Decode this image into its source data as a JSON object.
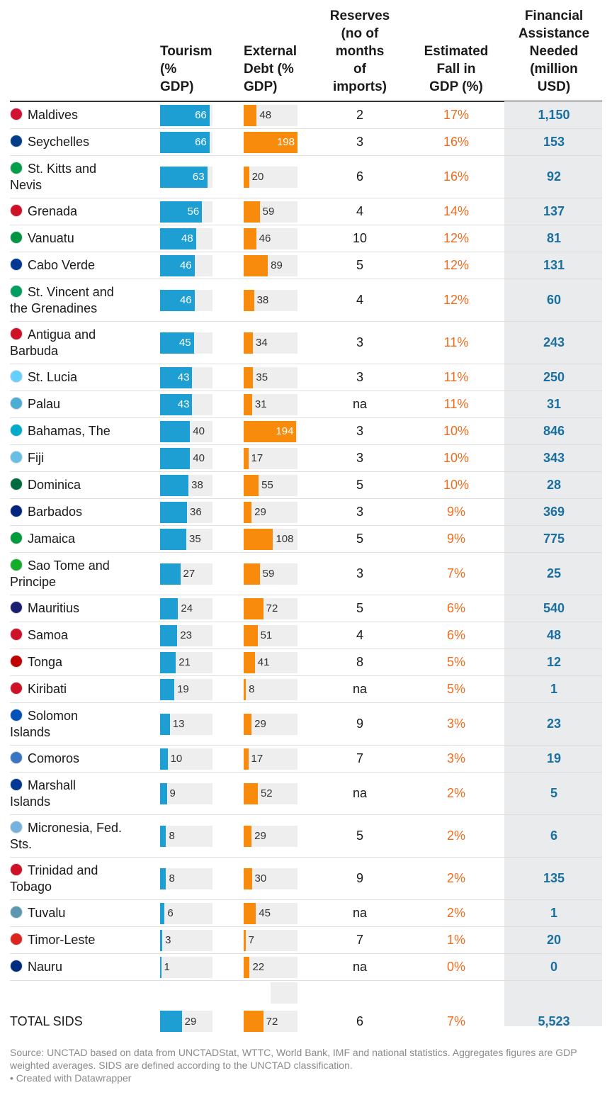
{
  "chart_data": {
    "type": "table",
    "columns": {
      "country": "",
      "tourism": "Tourism (% GDP)",
      "debt": "External Debt (% GDP)",
      "reserves": "Reserves (no of months of imports)",
      "fall": "Estimated Fall in GDP (%)",
      "fin": "Financial Assistance Needed (million USD)"
    },
    "header_lines": {
      "tourism": [
        "Tourism",
        "(%",
        "GDP)"
      ],
      "debt": [
        "External",
        "Debt (%",
        "GDP)"
      ],
      "reserves": [
        "Reserves",
        "(no of",
        "months",
        "of",
        "imports)"
      ],
      "fall": [
        "Estimated",
        "Fall in",
        "GDP (%)"
      ],
      "fin": [
        "Financial",
        "Assistance",
        "Needed",
        "(million",
        "USD)"
      ]
    },
    "bar_scale": {
      "tourism_max": 70,
      "debt_max": 198
    },
    "rows": [
      {
        "country": [
          "Maldives"
        ],
        "tourism": 66,
        "debt": 48,
        "reserves": "2",
        "fall": "17%",
        "fin": "1,150",
        "flag": "#d21034"
      },
      {
        "country": [
          "Seychelles"
        ],
        "tourism": 66,
        "debt": 198,
        "reserves": "3",
        "fall": "16%",
        "fin": "153",
        "flag": "#003f87"
      },
      {
        "country": [
          "St. Kitts and",
          "Nevis"
        ],
        "tourism": 63,
        "debt": 20,
        "reserves": "6",
        "fall": "16%",
        "fin": "92",
        "flag": "#009e49"
      },
      {
        "country": [
          "Grenada"
        ],
        "tourism": 56,
        "debt": 59,
        "reserves": "4",
        "fall": "14%",
        "fin": "137",
        "flag": "#ce1126"
      },
      {
        "country": [
          "Vanuatu"
        ],
        "tourism": 48,
        "debt": 46,
        "reserves": "10",
        "fall": "12%",
        "fin": "81",
        "flag": "#009543"
      },
      {
        "country": [
          "Cabo Verde"
        ],
        "tourism": 46,
        "debt": 89,
        "reserves": "5",
        "fall": "12%",
        "fin": "131",
        "flag": "#003893"
      },
      {
        "country": [
          "St. Vincent and",
          "the Grenadines"
        ],
        "tourism": 46,
        "debt": 38,
        "reserves": "4",
        "fall": "12%",
        "fin": "60",
        "flag": "#009e60"
      },
      {
        "country": [
          "Antigua and",
          "Barbuda"
        ],
        "tourism": 45,
        "debt": 34,
        "reserves": "3",
        "fall": "11%",
        "fin": "243",
        "flag": "#ce1126"
      },
      {
        "country": [
          "St. Lucia"
        ],
        "tourism": 43,
        "debt": 35,
        "reserves": "3",
        "fall": "11%",
        "fin": "250",
        "flag": "#65cfff"
      },
      {
        "country": [
          "Palau"
        ],
        "tourism": 43,
        "debt": 31,
        "reserves": "na",
        "fall": "11%",
        "fin": "31",
        "flag": "#4aadd6"
      },
      {
        "country": [
          "Bahamas, The"
        ],
        "tourism": 40,
        "debt": 194,
        "reserves": "3",
        "fall": "10%",
        "fin": "846",
        "flag": "#00abc9"
      },
      {
        "country": [
          "Fiji"
        ],
        "tourism": 40,
        "debt": 17,
        "reserves": "3",
        "fall": "10%",
        "fin": "343",
        "flag": "#68bfe5"
      },
      {
        "country": [
          "Dominica"
        ],
        "tourism": 38,
        "debt": 55,
        "reserves": "5",
        "fall": "10%",
        "fin": "28",
        "flag": "#006b3f"
      },
      {
        "country": [
          "Barbados"
        ],
        "tourism": 36,
        "debt": 29,
        "reserves": "3",
        "fall": "9%",
        "fin": "369",
        "flag": "#00267f"
      },
      {
        "country": [
          "Jamaica"
        ],
        "tourism": 35,
        "debt": 108,
        "reserves": "5",
        "fall": "9%",
        "fin": "775",
        "flag": "#009b3a"
      },
      {
        "country": [
          "Sao Tome and",
          "Principe"
        ],
        "tourism": 27,
        "debt": 59,
        "reserves": "3",
        "fall": "7%",
        "fin": "25",
        "flag": "#12ad2b"
      },
      {
        "country": [
          "Mauritius"
        ],
        "tourism": 24,
        "debt": 72,
        "reserves": "5",
        "fall": "6%",
        "fin": "540",
        "flag": "#1a206d"
      },
      {
        "country": [
          "Samoa"
        ],
        "tourism": 23,
        "debt": 51,
        "reserves": "4",
        "fall": "6%",
        "fin": "48",
        "flag": "#ce1126"
      },
      {
        "country": [
          "Tonga"
        ],
        "tourism": 21,
        "debt": 41,
        "reserves": "8",
        "fall": "5%",
        "fin": "12",
        "flag": "#c10000"
      },
      {
        "country": [
          "Kiribati"
        ],
        "tourism": 19,
        "debt": 8,
        "reserves": "na",
        "fall": "5%",
        "fin": "1",
        "flag": "#ce1126"
      },
      {
        "country": [
          "Solomon",
          "Islands"
        ],
        "tourism": 13,
        "debt": 29,
        "reserves": "9",
        "fall": "3%",
        "fin": "23",
        "flag": "#0051ba"
      },
      {
        "country": [
          "Comoros"
        ],
        "tourism": 10,
        "debt": 17,
        "reserves": "7",
        "fall": "3%",
        "fin": "19",
        "flag": "#3a75c4"
      },
      {
        "country": [
          "Marshall",
          "Islands"
        ],
        "tourism": 9,
        "debt": 52,
        "reserves": "na",
        "fall": "2%",
        "fin": "5",
        "flag": "#003893"
      },
      {
        "country": [
          "Micronesia, Fed.",
          "Sts."
        ],
        "tourism": 8,
        "debt": 29,
        "reserves": "5",
        "fall": "2%",
        "fin": "6",
        "flag": "#75b2dd"
      },
      {
        "country": [
          "Trinidad and",
          "Tobago"
        ],
        "tourism": 8,
        "debt": 30,
        "reserves": "9",
        "fall": "2%",
        "fin": "135",
        "flag": "#ce1126"
      },
      {
        "country": [
          "Tuvalu"
        ],
        "tourism": 6,
        "debt": 45,
        "reserves": "na",
        "fall": "2%",
        "fin": "1",
        "flag": "#5b97b1"
      },
      {
        "country": [
          "Timor-Leste"
        ],
        "tourism": 3,
        "debt": 7,
        "reserves": "7",
        "fall": "1%",
        "fin": "20",
        "flag": "#dc241f"
      },
      {
        "country": [
          "Nauru"
        ],
        "tourism": 1,
        "debt": 22,
        "reserves": "na",
        "fall": "0%",
        "fin": "0",
        "flag": "#002b7f"
      }
    ],
    "total": {
      "country": [
        "TOTAL SIDS"
      ],
      "tourism": 29,
      "debt": 72,
      "reserves": "6",
      "fall": "7%",
      "fin": "5,523"
    }
  },
  "footer": {
    "source": "Source: UNCTAD based on data from UNCTADStat, WTTC, World Bank, IMF and national statistics. Aggregates figures are GDP weighted averages. SIDS are defined according to the UNCTAD classification.",
    "credit": "• Created with Datawrapper"
  },
  "colors": {
    "tourism_bar": "#1d9fd3",
    "debt_bar": "#f88b0c",
    "fall_text": "#f26b1d",
    "fin_text": "#1a6fa0",
    "fin_column_bg": "#e9ebec",
    "bar_track": "#eeeeee"
  }
}
